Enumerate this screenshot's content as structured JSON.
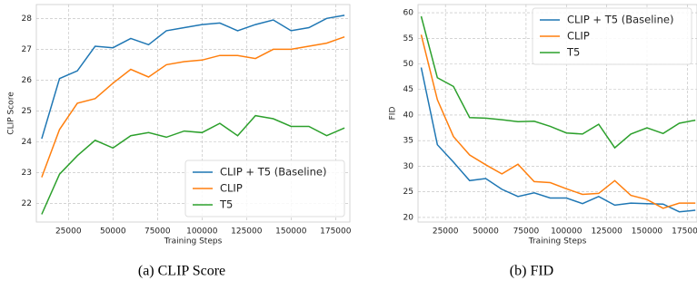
{
  "chart_data": [
    {
      "type": "line",
      "caption": "(a) CLIP Score",
      "xlabel": "Training Steps",
      "ylabel": "CLIP Score",
      "x": [
        10000,
        20000,
        30000,
        40000,
        50000,
        60000,
        70000,
        80000,
        90000,
        100000,
        110000,
        120000,
        130000,
        140000,
        150000,
        160000,
        170000,
        180000
      ],
      "series": [
        {
          "name": "CLIP + T5 (Baseline)",
          "color": "#1f77b4",
          "values": [
            24.1,
            26.05,
            26.3,
            27.1,
            27.05,
            27.35,
            27.15,
            27.6,
            27.7,
            27.8,
            27.85,
            27.6,
            27.8,
            27.95,
            27.6,
            27.7,
            28.0,
            28.1
          ]
        },
        {
          "name": "CLIP",
          "color": "#ff7f0e",
          "values": [
            22.85,
            24.4,
            25.25,
            25.4,
            25.9,
            26.35,
            26.1,
            26.5,
            26.6,
            26.65,
            26.8,
            26.8,
            26.7,
            27.0,
            27.0,
            27.1,
            27.2,
            27.4
          ]
        },
        {
          "name": "T5",
          "color": "#2ca02c",
          "values": [
            21.65,
            22.95,
            23.55,
            24.05,
            23.8,
            24.2,
            24.3,
            24.15,
            24.35,
            24.3,
            24.6,
            24.2,
            24.85,
            24.75,
            24.5,
            24.5,
            24.2,
            24.45
          ]
        }
      ],
      "xlim": [
        7000,
        183000
      ],
      "xticks": [
        25000,
        50000,
        75000,
        100000,
        125000,
        150000,
        175000
      ],
      "ylim": [
        21.4,
        28.45
      ],
      "yticks": [
        22,
        23,
        24,
        25,
        26,
        27,
        28
      ],
      "grid": true,
      "legend": "lower right"
    },
    {
      "type": "line",
      "caption": "(b) FID",
      "xlabel": "Training Steps",
      "ylabel": "FID",
      "x": [
        10000,
        20000,
        30000,
        40000,
        50000,
        60000,
        70000,
        80000,
        90000,
        100000,
        110000,
        120000,
        130000,
        140000,
        150000,
        160000,
        170000,
        180000
      ],
      "series": [
        {
          "name": "CLIP + T5 (Baseline)",
          "color": "#1f77b4",
          "values": [
            49.3,
            34.2,
            30.8,
            27.2,
            27.6,
            25.5,
            24.1,
            24.8,
            23.8,
            23.8,
            22.7,
            24.1,
            22.4,
            22.8,
            22.7,
            22.6,
            21.1,
            21.4
          ]
        },
        {
          "name": "CLIP",
          "color": "#ff7f0e",
          "values": [
            55.7,
            43.0,
            35.8,
            32.2,
            30.3,
            28.5,
            30.4,
            27.0,
            26.8,
            25.6,
            24.5,
            24.7,
            27.2,
            24.3,
            23.5,
            21.8,
            22.8,
            22.8
          ]
        },
        {
          "name": "T5",
          "color": "#2ca02c",
          "values": [
            59.3,
            47.3,
            45.6,
            39.5,
            39.4,
            39.1,
            38.7,
            38.8,
            37.8,
            36.5,
            36.3,
            38.2,
            33.6,
            36.3,
            37.5,
            36.4,
            38.4,
            39.0
          ]
        }
      ],
      "xlim": [
        8000,
        181000
      ],
      "xticks": [
        25000,
        50000,
        75000,
        100000,
        125000,
        150000,
        175000
      ],
      "ylim": [
        19.1,
        61.6
      ],
      "yticks": [
        20,
        25,
        30,
        35,
        40,
        45,
        50,
        55,
        60
      ],
      "grid": true,
      "legend": "upper right"
    }
  ]
}
